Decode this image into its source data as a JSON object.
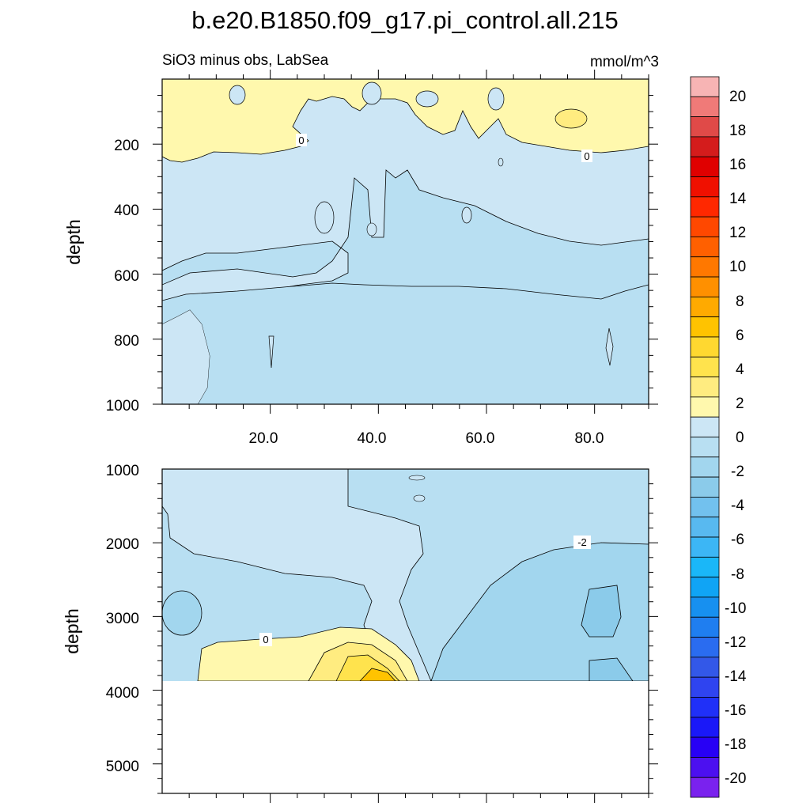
{
  "title": "b.e20.B1850.f09_g17.pi_control.all.215",
  "subtitle_left": "SiO3 minus obs, LabSea",
  "subtitle_right": "mmol/m^3",
  "colorbar": {
    "labels": [
      "20",
      "18",
      "16",
      "14",
      "12",
      "10",
      "8",
      "6",
      "4",
      "2",
      "0",
      "-2",
      "-4",
      "-6",
      "-8",
      "-10",
      "-12",
      "-14",
      "-16",
      "-18",
      "-20"
    ],
    "colors": [
      "#f7b4b4",
      "#f07a78",
      "#e04a48",
      "#d41c1c",
      "#e00000",
      "#f01000",
      "#ff2800",
      "#ff4800",
      "#ff6000",
      "#ff7800",
      "#ff9000",
      "#ffaa00",
      "#ffc300",
      "#ffd830",
      "#ffe34d",
      "#ffec80",
      "#fff8ad",
      "#cce6f5",
      "#b8dff2",
      "#a2d6ee",
      "#8bcbea",
      "#72c1ee",
      "#58b9f0",
      "#3cb6f5",
      "#1ab7f8",
      "#10a4f5",
      "#1790f0",
      "#1f7ef0",
      "#2a6cf0",
      "#3358e8",
      "#2f44f0",
      "#2030f8",
      "#1a18f8",
      "#2800f5",
      "#4c10f0",
      "#7a22ee"
    ]
  },
  "chart_data": [
    {
      "type": "heatmap",
      "panel": "upper",
      "x_ticks": [
        "20.0",
        "40.0",
        "60.0",
        "80.0"
      ],
      "xlim": [
        0,
        90
      ],
      "ylabel": "depth",
      "y_ticks": [
        "200",
        "400",
        "600",
        "800",
        "1000"
      ],
      "ylim": [
        1000,
        0
      ],
      "contour_labels": [
        {
          "text": "0",
          "x": 27,
          "y": 190
        },
        {
          "text": "0",
          "x": 79,
          "y": 225
        }
      ],
      "regions": [
        {
          "level": "0 to 2",
          "color": "#fff8ad",
          "x_range": [
            0,
            90
          ],
          "depth_range": [
            10,
            230
          ]
        },
        {
          "level": "-1 to 0",
          "color": "#cce6f5",
          "depth_range": [
            0,
            1000
          ]
        },
        {
          "level": "-2 to -1",
          "color": "#b8dff2",
          "x_range": [
            35,
            90
          ],
          "depth_range": [
            250,
            1000
          ]
        }
      ]
    },
    {
      "type": "heatmap",
      "panel": "lower",
      "ylabel": "depth",
      "y_ticks": [
        "1000",
        "2000",
        "3000",
        "4000",
        "5000"
      ],
      "ylim": [
        5400,
        1000
      ],
      "data_bottom_depth": 3900,
      "contour_labels": [
        {
          "text": "-2",
          "x": 78,
          "y": 2000
        },
        {
          "text": "0",
          "x": 20,
          "y": 3300
        }
      ],
      "regions": [
        {
          "level": "-1 to 0",
          "color": "#cce6f5",
          "x_range": [
            2,
            50
          ],
          "depth_range": [
            1000,
            3400
          ]
        },
        {
          "level": "-2 to -1",
          "color": "#b8dff2",
          "depth_range": [
            1000,
            3900
          ]
        },
        {
          "level": "-3 to -2",
          "color": "#a2d6ee",
          "x_range": [
            52,
            90
          ],
          "depth_range": [
            2000,
            3900
          ]
        },
        {
          "level": "-4 to -3",
          "color": "#8bcbea",
          "x_range": [
            78,
            86
          ],
          "depth_range": [
            2600,
            3250
          ]
        },
        {
          "level": "0 to 4",
          "color": "#ffe34d",
          "x_range": [
            10,
            50
          ],
          "depth_range": [
            3150,
            3900
          ]
        }
      ]
    }
  ]
}
